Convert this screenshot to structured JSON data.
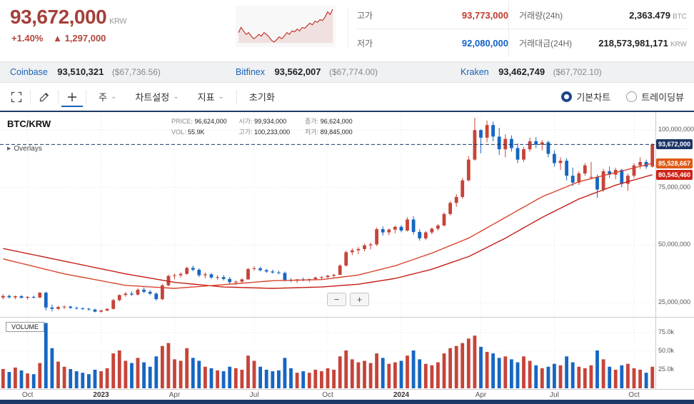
{
  "icons": {
    "arrow_up": "▲",
    "chevron_down": "⌄",
    "play": "▶"
  },
  "header": {
    "price": "93,672,000",
    "currency": "KRW",
    "change_pct": "+1.40%",
    "change_abs": "1,297,000",
    "stats": {
      "high_label": "고가",
      "high": "93,773,000",
      "low_label": "저가",
      "low": "92,080,000",
      "vol_label": "거래량(24h)",
      "vol": "2,363.479",
      "vol_unit": "BTC",
      "amount_label": "거래대금(24H)",
      "amount": "218,573,981,171",
      "amount_unit": "KRW"
    }
  },
  "exchanges": [
    {
      "name": "Coinbase",
      "price": "93,510,321",
      "usd": "($67,736.56)"
    },
    {
      "name": "Bitfinex",
      "price": "93,562,007",
      "usd": "($67,774.00)"
    },
    {
      "name": "Kraken",
      "price": "93,462,749",
      "usd": "($67,702.10)"
    }
  ],
  "toolbar": {
    "period": "주",
    "chart_settings": "차트설정",
    "indicators": "지표",
    "reset": "초기화",
    "radio_basic": "기본차트",
    "radio_tradingview": "트레이딩뷰"
  },
  "chart": {
    "symbol": "BTC/KRW",
    "overlays_label": "Overlays",
    "volume_label": "VOLUME",
    "zoom_out": "−",
    "zoom_in": "+",
    "info": {
      "price_label": "PRICE:",
      "price": "96,624,000",
      "open_label": "시가:",
      "open": "99,934,000",
      "close_label": "종가:",
      "close": "96,624,000",
      "vol_label": "VOL:",
      "vol": "55.9K",
      "high_label": "고가:",
      "high": "100,233,000",
      "low_label": "저가:",
      "low": "89,845,000"
    }
  },
  "chart_data": {
    "type": "candlestick",
    "symbol": "BTC/KRW",
    "interval": "weekly",
    "price_unit": "million KRW",
    "volume_unit": "thousand BTC",
    "y_axis": {
      "ticks": [
        100,
        75,
        50,
        25
      ],
      "labels": [
        "100,000,000",
        "75,000,000",
        "50,000,000",
        "25,000,000"
      ]
    },
    "volume_axis": {
      "ticks": [
        75,
        50,
        25
      ],
      "labels": [
        "75.0k",
        "50.0k",
        "25.0k"
      ]
    },
    "price_lines": [
      {
        "value": 93.672,
        "label": "93,672,000",
        "color": "#1b3666",
        "style": "dashed"
      },
      {
        "value": 85.528667,
        "label": "85,528,667",
        "color": "#e05a17",
        "style": "badge"
      },
      {
        "value": 80.54546,
        "label": "80,545,460",
        "color": "#cf2318",
        "style": "badge"
      }
    ],
    "colors": {
      "up": "#c6443a",
      "down": "#1666c2",
      "ma_fast": "#d8432c",
      "ma_slow": "#c41e14"
    },
    "x_labels": [
      {
        "i": 4,
        "t": "Oct"
      },
      {
        "i": 16,
        "t": "2023",
        "b": 1
      },
      {
        "i": 28,
        "t": "Apr"
      },
      {
        "i": 41,
        "t": "Jul"
      },
      {
        "i": 53,
        "t": "Oct"
      },
      {
        "i": 65,
        "t": "2024",
        "b": 1
      },
      {
        "i": 78,
        "t": "Apr"
      },
      {
        "i": 90,
        "t": "Jul"
      },
      {
        "i": 103,
        "t": "Oct"
      }
    ],
    "ma_fast_anchors": [
      [
        0,
        44
      ],
      [
        10,
        37.5
      ],
      [
        20,
        32.5
      ],
      [
        28,
        31.2
      ],
      [
        36,
        32.8
      ],
      [
        44,
        34.5
      ],
      [
        52,
        35
      ],
      [
        58,
        37
      ],
      [
        64,
        41
      ],
      [
        70,
        46.5
      ],
      [
        76,
        53
      ],
      [
        82,
        62
      ],
      [
        88,
        71
      ],
      [
        94,
        77.5
      ],
      [
        100,
        81.5
      ],
      [
        106,
        85.53
      ]
    ],
    "ma_slow_anchors": [
      [
        0,
        48.5
      ],
      [
        10,
        43
      ],
      [
        20,
        37.5
      ],
      [
        28,
        33.8
      ],
      [
        36,
        31.8
      ],
      [
        44,
        31.2
      ],
      [
        52,
        31.8
      ],
      [
        58,
        33
      ],
      [
        64,
        35.5
      ],
      [
        70,
        39.5
      ],
      [
        76,
        45
      ],
      [
        82,
        53
      ],
      [
        88,
        62
      ],
      [
        94,
        70
      ],
      [
        100,
        76
      ],
      [
        106,
        80.55
      ]
    ],
    "candles": [
      [
        27.2,
        28.6,
        26.4,
        27.9,
        26
      ],
      [
        27.9,
        28.4,
        26.8,
        27.3,
        22
      ],
      [
        27.3,
        28.1,
        26.5,
        27.8,
        28
      ],
      [
        27.8,
        28.3,
        26.9,
        27.1,
        24
      ],
      [
        27.1,
        27.8,
        26.3,
        27.5,
        20
      ],
      [
        27.5,
        28.0,
        26.8,
        27.2,
        19
      ],
      [
        27.2,
        29.6,
        27.0,
        29.3,
        34
      ],
      [
        29.3,
        29.8,
        21.6,
        22.9,
        88
      ],
      [
        22.9,
        24.2,
        21.2,
        22.3,
        54
      ],
      [
        22.3,
        23.6,
        21.8,
        23.1,
        36
      ],
      [
        23.1,
        23.8,
        22.2,
        23.3,
        29
      ],
      [
        23.3,
        23.6,
        22.4,
        22.7,
        26
      ],
      [
        22.7,
        23.3,
        22.1,
        22.5,
        23
      ],
      [
        22.5,
        23.0,
        21.9,
        22.3,
        21
      ],
      [
        22.3,
        22.8,
        21.6,
        22.0,
        19
      ],
      [
        22.0,
        22.4,
        20.8,
        21.1,
        25
      ],
      [
        21.1,
        21.9,
        20.7,
        21.6,
        23
      ],
      [
        21.6,
        22.5,
        21.2,
        22.3,
        27
      ],
      [
        22.3,
        26.6,
        22.1,
        26.1,
        47
      ],
      [
        26.1,
        28.6,
        25.6,
        28.3,
        51
      ],
      [
        28.3,
        29.6,
        27.6,
        28.9,
        37
      ],
      [
        28.9,
        29.9,
        27.9,
        28.5,
        34
      ],
      [
        28.5,
        31.2,
        28.1,
        30.6,
        41
      ],
      [
        30.6,
        31.6,
        29.1,
        29.7,
        35
      ],
      [
        29.7,
        30.5,
        28.3,
        28.9,
        29
      ],
      [
        28.9,
        29.5,
        25.9,
        26.5,
        43
      ],
      [
        26.5,
        33.2,
        26.1,
        32.5,
        57
      ],
      [
        32.5,
        37.2,
        32.1,
        36.6,
        61
      ],
      [
        36.6,
        37.6,
        35.1,
        36.9,
        39
      ],
      [
        36.9,
        38.1,
        35.9,
        37.5,
        37
      ],
      [
        37.5,
        40.6,
        37.1,
        40.1,
        54
      ],
      [
        40.1,
        41.1,
        38.6,
        39.3,
        41
      ],
      [
        39.3,
        39.9,
        36.1,
        36.9,
        37
      ],
      [
        36.9,
        38.1,
        35.6,
        37.3,
        29
      ],
      [
        37.3,
        37.9,
        35.3,
        35.9,
        27
      ],
      [
        35.9,
        36.9,
        34.9,
        36.1,
        24
      ],
      [
        36.1,
        37.0,
        34.6,
        35.3,
        23
      ],
      [
        35.3,
        36.1,
        33.1,
        33.9,
        29
      ],
      [
        33.9,
        34.6,
        32.6,
        34.1,
        27
      ],
      [
        34.1,
        35.6,
        33.3,
        35.1,
        25
      ],
      [
        35.1,
        40.1,
        34.9,
        39.6,
        44
      ],
      [
        39.6,
        40.9,
        38.9,
        39.9,
        37
      ],
      [
        39.9,
        40.6,
        38.6,
        39.1,
        29
      ],
      [
        39.1,
        39.7,
        37.9,
        38.5,
        25
      ],
      [
        38.5,
        39.3,
        37.6,
        38.1,
        23
      ],
      [
        38.1,
        38.9,
        37.3,
        37.9,
        24
      ],
      [
        37.9,
        38.5,
        34.1,
        34.9,
        41
      ],
      [
        34.9,
        35.6,
        33.9,
        34.5,
        27
      ],
      [
        34.5,
        35.3,
        33.6,
        35.1,
        21
      ],
      [
        35.1,
        35.9,
        34.3,
        34.7,
        23
      ],
      [
        34.7,
        35.5,
        33.9,
        35.2,
        21
      ],
      [
        35.2,
        36.3,
        34.7,
        35.9,
        25
      ],
      [
        35.9,
        36.5,
        35.0,
        36.1,
        23
      ],
      [
        36.1,
        37.1,
        35.3,
        36.7,
        27
      ],
      [
        36.7,
        37.5,
        35.9,
        37.1,
        25
      ],
      [
        37.1,
        41.6,
        36.9,
        41.1,
        43
      ],
      [
        41.1,
        47.6,
        40.6,
        46.9,
        51
      ],
      [
        46.9,
        48.6,
        45.6,
        47.7,
        39
      ],
      [
        47.7,
        49.1,
        46.1,
        48.3,
        35
      ],
      [
        48.3,
        50.6,
        47.3,
        49.9,
        37
      ],
      [
        49.9,
        51.1,
        48.1,
        50.3,
        34
      ],
      [
        50.3,
        57.6,
        49.6,
        56.9,
        47
      ],
      [
        56.9,
        58.1,
        54.1,
        55.5,
        41
      ],
      [
        55.5,
        57.3,
        54.3,
        56.7,
        33
      ],
      [
        56.7,
        58.5,
        55.1,
        57.9,
        35
      ],
      [
        57.9,
        58.7,
        55.6,
        56.3,
        37
      ],
      [
        56.3,
        62.1,
        55.9,
        61.1,
        44
      ],
      [
        61.1,
        62.6,
        54.6,
        55.7,
        51
      ],
      [
        55.7,
        56.9,
        51.9,
        52.9,
        39
      ],
      [
        52.9,
        56.1,
        52.1,
        55.5,
        33
      ],
      [
        55.5,
        57.6,
        54.7,
        57.1,
        31
      ],
      [
        57.1,
        59.1,
        56.3,
        58.5,
        35
      ],
      [
        58.5,
        64.1,
        58.1,
        63.5,
        47
      ],
      [
        63.5,
        69.1,
        62.9,
        68.3,
        54
      ],
      [
        68.3,
        72.1,
        66.6,
        70.9,
        57
      ],
      [
        70.9,
        79.1,
        70.1,
        78.1,
        61
      ],
      [
        78.1,
        88.6,
        77.6,
        87.1,
        67
      ],
      [
        87.1,
        105.2,
        86.6,
        99.9,
        71
      ],
      [
        99.934,
        100.233,
        89.845,
        96.624,
        55.9
      ],
      [
        96.6,
        104.1,
        94.6,
        102.1,
        49
      ],
      [
        102.1,
        103.6,
        95.1,
        97.1,
        47
      ],
      [
        97.1,
        100.9,
        89.1,
        91.6,
        41
      ],
      [
        91.6,
        98.1,
        88.1,
        96.1,
        43
      ],
      [
        96.1,
        97.6,
        90.6,
        92.1,
        39
      ],
      [
        92.1,
        94.1,
        85.6,
        87.1,
        35
      ],
      [
        87.1,
        92.6,
        86.1,
        91.6,
        43
      ],
      [
        91.6,
        96.6,
        90.6,
        95.1,
        37
      ],
      [
        95.1,
        96.9,
        92.1,
        93.6,
        31
      ],
      [
        93.6,
        95.6,
        91.1,
        94.6,
        27
      ],
      [
        94.6,
        95.3,
        88.1,
        89.6,
        29
      ],
      [
        89.6,
        91.1,
        84.1,
        85.6,
        33
      ],
      [
        85.6,
        88.1,
        82.6,
        86.6,
        31
      ],
      [
        86.6,
        87.6,
        78.1,
        80.1,
        43
      ],
      [
        80.1,
        83.6,
        75.6,
        77.1,
        35
      ],
      [
        77.1,
        82.1,
        76.1,
        81.1,
        29
      ],
      [
        81.1,
        85.6,
        80.1,
        84.6,
        27
      ],
      [
        79.6,
        86.1,
        78.6,
        79.6,
        31
      ],
      [
        79.6,
        80.6,
        70.6,
        74.1,
        51
      ],
      [
        74.1,
        83.1,
        73.1,
        82.1,
        39
      ],
      [
        82.1,
        84.1,
        79.1,
        80.6,
        29
      ],
      [
        80.6,
        83.6,
        78.6,
        82.6,
        25
      ],
      [
        82.6,
        83.1,
        75.1,
        76.6,
        31
      ],
      [
        76.6,
        81.1,
        73.6,
        80.1,
        33
      ],
      [
        80.1,
        85.6,
        79.1,
        84.6,
        27
      ],
      [
        84.6,
        88.1,
        83.1,
        86.1,
        25
      ],
      [
        86.1,
        87.1,
        83.1,
        84.1,
        21
      ],
      [
        84.1,
        94.2,
        83.6,
        93.672,
        29
      ]
    ],
    "sparkline": [
      80,
      83,
      81,
      79,
      80,
      78,
      76.5,
      77.5,
      79,
      78,
      80,
      79,
      77.5,
      75.5,
      74.5,
      76,
      77.5,
      76.5,
      78,
      80,
      79,
      81,
      80.5,
      82,
      81,
      83,
      82.5,
      84,
      85.5,
      84.5,
      86.5,
      86,
      87.5,
      87,
      89,
      92,
      90.5,
      93.5
    ]
  }
}
